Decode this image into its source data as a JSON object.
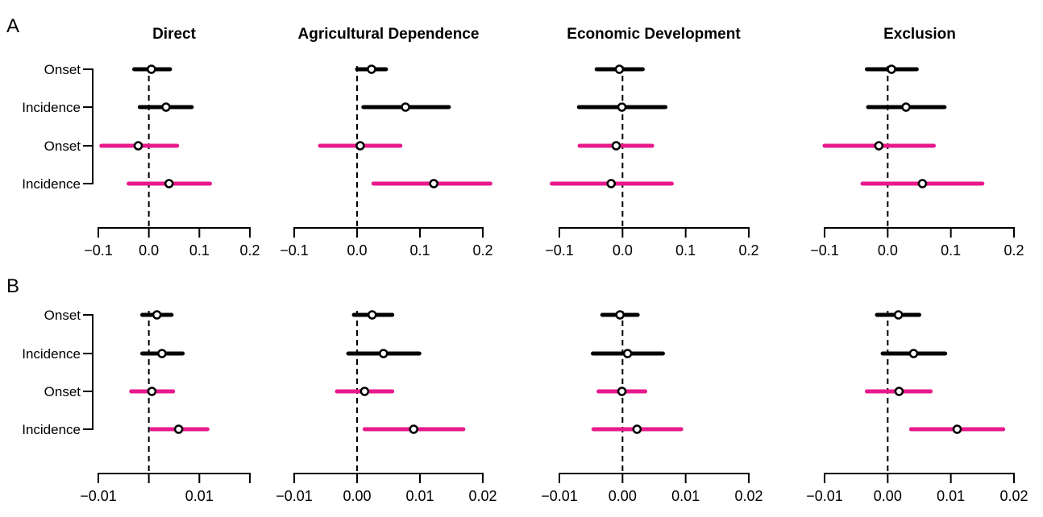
{
  "chart_data": {
    "type": "forest",
    "panel_titles": [
      "Direct",
      "Agricultural Dependence",
      "Economic Development",
      "Exclusion"
    ],
    "row_labels": [
      "Onset",
      "Incidence",
      "Onset",
      "Incidence"
    ],
    "row_groups": [
      "black",
      "black",
      "pink",
      "pink"
    ],
    "colors": {
      "black": "#000000",
      "pink": "#e8198b"
    },
    "reference_line": 0,
    "rows": [
      {
        "letter": "A",
        "xlim": [
          -0.1,
          0.2
        ],
        "ticks": [
          -0.1,
          0.0,
          0.1,
          0.2
        ],
        "tick_labels": [
          [
            "−0.1",
            "0.0",
            "0.1",
            "0.2"
          ],
          [
            "−0.1",
            "0.0",
            "0.1",
            "0.2"
          ],
          [
            "−0.1",
            "0.0",
            "0.1",
            "0.2"
          ],
          [
            "−0.1",
            "0.0",
            "0.1",
            "0.2"
          ]
        ],
        "panels": [
          {
            "estimates": [
              {
                "est": 0.005,
                "lo": -0.029,
                "hi": 0.042
              },
              {
                "est": 0.034,
                "lo": -0.018,
                "hi": 0.085
              },
              {
                "est": -0.021,
                "lo": -0.094,
                "hi": 0.056
              },
              {
                "est": 0.04,
                "lo": -0.04,
                "hi": 0.121
              }
            ]
          },
          {
            "estimates": [
              {
                "est": 0.023,
                "lo": 0.0,
                "hi": 0.046
              },
              {
                "est": 0.077,
                "lo": 0.01,
                "hi": 0.146
              },
              {
                "est": 0.005,
                "lo": -0.059,
                "hi": 0.069
              },
              {
                "est": 0.122,
                "lo": 0.026,
                "hi": 0.212
              }
            ]
          },
          {
            "estimates": [
              {
                "est": -0.005,
                "lo": -0.041,
                "hi": 0.032
              },
              {
                "est": -0.001,
                "lo": -0.069,
                "hi": 0.068
              },
              {
                "est": -0.01,
                "lo": -0.068,
                "hi": 0.047
              },
              {
                "est": -0.018,
                "lo": -0.112,
                "hi": 0.078
              }
            ]
          },
          {
            "estimates": [
              {
                "est": 0.006,
                "lo": -0.033,
                "hi": 0.046
              },
              {
                "est": 0.029,
                "lo": -0.031,
                "hi": 0.09
              },
              {
                "est": -0.014,
                "lo": -0.1,
                "hi": 0.073
              },
              {
                "est": 0.055,
                "lo": -0.04,
                "hi": 0.15
              }
            ]
          }
        ]
      },
      {
        "letter": "B",
        "xlim": [
          -0.01,
          0.02
        ],
        "ticks": [
          -0.01,
          0.0,
          0.01,
          0.02
        ],
        "tick_labels": [
          [
            "−0.01",
            "",
            "0.01",
            ""
          ],
          [
            "−0.01",
            "0.00",
            "0.01",
            "0.02"
          ],
          [
            "−0.01",
            "0.00",
            "0.01",
            "0.02"
          ],
          [
            "−0.01",
            "0.00",
            "0.01",
            "0.02"
          ]
        ],
        "panels": [
          {
            "estimates": [
              {
                "est": 0.0016,
                "lo": -0.0013,
                "hi": 0.0045
              },
              {
                "est": 0.0026,
                "lo": -0.0013,
                "hi": 0.0067
              },
              {
                "est": 0.0006,
                "lo": -0.0035,
                "hi": 0.0048
              },
              {
                "est": 0.0059,
                "lo": 0.0005,
                "hi": 0.0116
              }
            ]
          },
          {
            "estimates": [
              {
                "est": 0.0024,
                "lo": -0.0005,
                "hi": 0.0056
              },
              {
                "est": 0.0042,
                "lo": -0.0014,
                "hi": 0.0099
              },
              {
                "est": 0.0012,
                "lo": -0.0032,
                "hi": 0.0056
              },
              {
                "est": 0.009,
                "lo": 0.0012,
                "hi": 0.0169
              }
            ]
          },
          {
            "estimates": [
              {
                "est": -0.0004,
                "lo": -0.0032,
                "hi": 0.0024
              },
              {
                "est": 0.0008,
                "lo": -0.0047,
                "hi": 0.0064
              },
              {
                "est": -0.0001,
                "lo": -0.0038,
                "hi": 0.0036
              },
              {
                "est": 0.0023,
                "lo": -0.0046,
                "hi": 0.0093
              }
            ]
          },
          {
            "estimates": [
              {
                "est": 0.0017,
                "lo": -0.0017,
                "hi": 0.005
              },
              {
                "est": 0.0041,
                "lo": -0.0008,
                "hi": 0.0091
              },
              {
                "est": 0.0018,
                "lo": -0.0033,
                "hi": 0.0068
              },
              {
                "est": 0.011,
                "lo": 0.0037,
                "hi": 0.0183
              }
            ]
          }
        ]
      }
    ]
  }
}
